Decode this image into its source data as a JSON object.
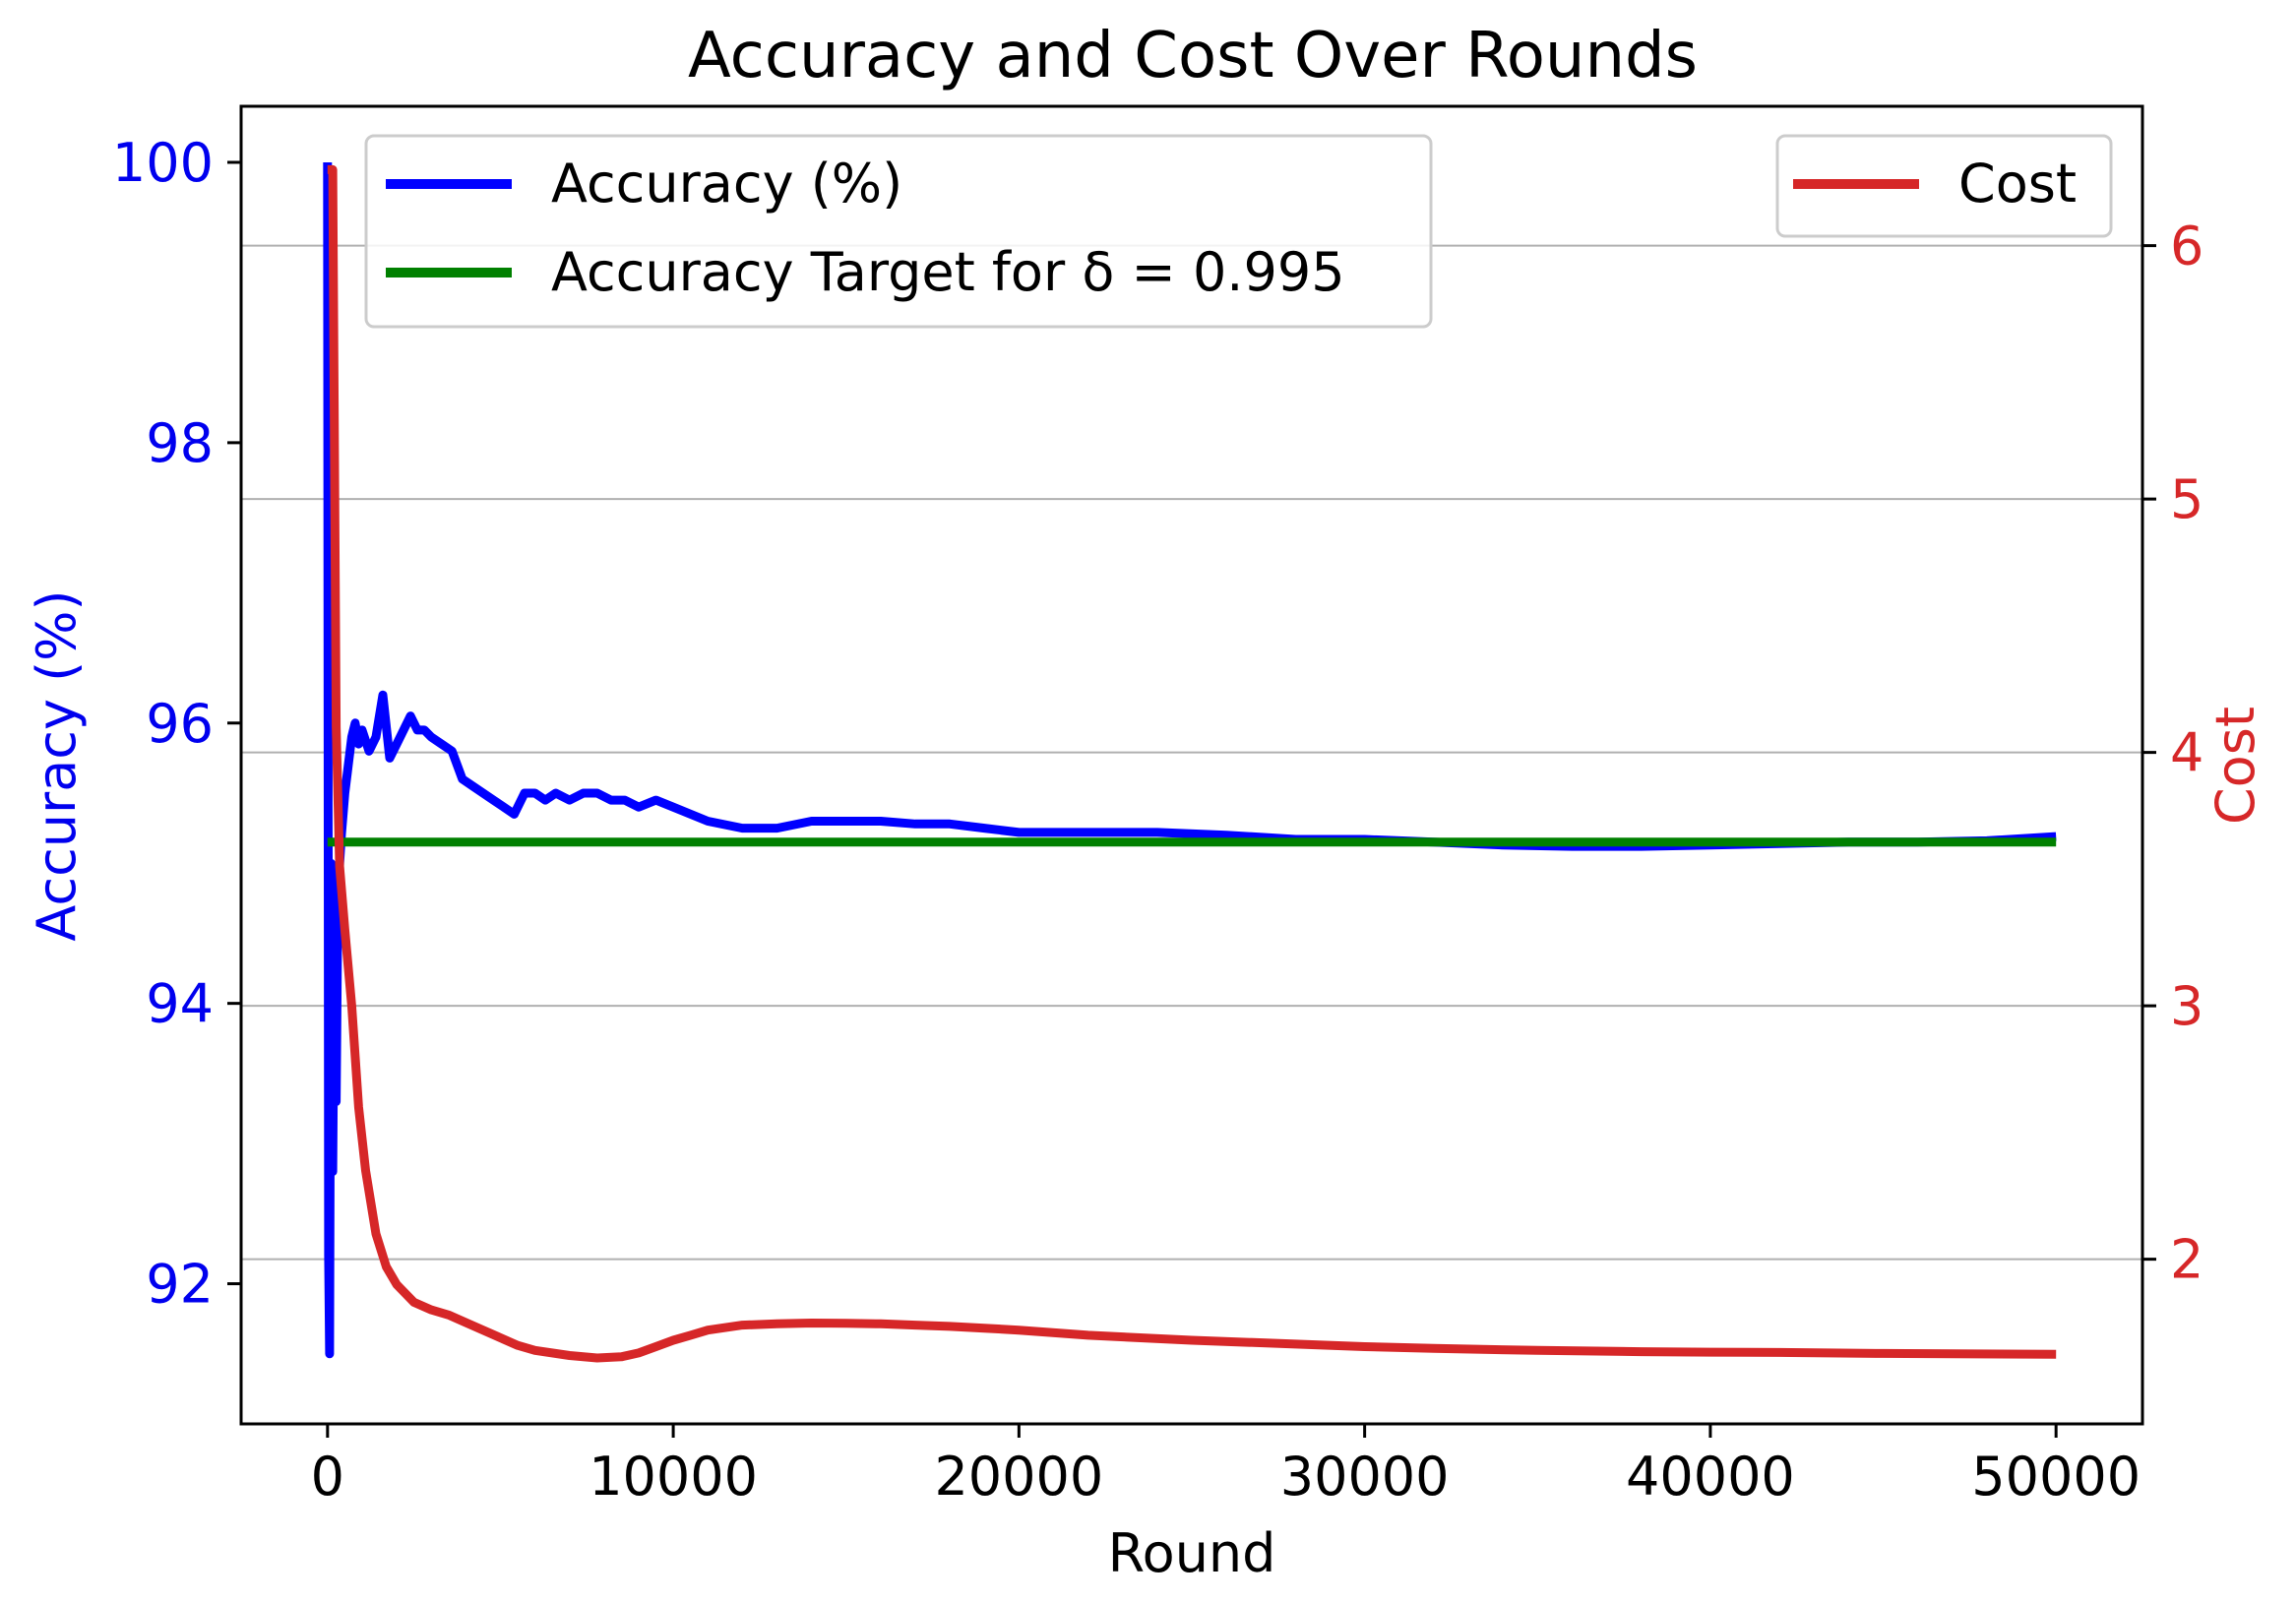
{
  "chart_data": {
    "type": "line",
    "title": "Accuracy and Cost Over Rounds",
    "xlabel": "Round",
    "xlim": [
      -2500,
      52500
    ],
    "xticks": [
      0,
      10000,
      20000,
      30000,
      40000,
      50000
    ],
    "xtick_labels": [
      "0",
      "10000",
      "20000",
      "30000",
      "40000",
      "50000"
    ],
    "left_axis": {
      "label": "Accuracy (%)",
      "color": "#0000ee",
      "lim": [
        91.0,
        100.4
      ],
      "ticks": [
        92,
        94,
        96,
        98,
        100
      ],
      "tick_labels": [
        "92",
        "94",
        "96",
        "98",
        "100"
      ]
    },
    "right_axis": {
      "label": "Cost",
      "color": "#d62728",
      "lim": [
        1.35,
        6.55
      ],
      "ticks": [
        2,
        3,
        4,
        5,
        6
      ],
      "tick_labels": [
        "2",
        "3",
        "4",
        "5",
        "6"
      ],
      "grid": true
    },
    "series": [
      {
        "name": "Accuracy (%)",
        "axis": "left",
        "color": "#0000ff",
        "x": [
          0,
          30,
          60,
          100,
          150,
          200,
          250,
          300,
          400,
          500,
          600,
          700,
          800,
          900,
          1000,
          1200,
          1400,
          1600,
          1800,
          2000,
          2200,
          2400,
          2600,
          2800,
          3000,
          3300,
          3600,
          3900,
          4200,
          4500,
          4800,
          5100,
          5400,
          5700,
          6000,
          6300,
          6600,
          7000,
          7400,
          7800,
          8200,
          8600,
          9000,
          9500,
          10000,
          11000,
          12000,
          13000,
          14000,
          15000,
          16000,
          17000,
          18000,
          19000,
          20000,
          22000,
          24000,
          26000,
          28000,
          30000,
          32000,
          34000,
          36000,
          38000,
          40000,
          42000,
          44000,
          46000,
          48000,
          50000
        ],
        "values": [
          100.0,
          92.2,
          91.5,
          95.0,
          92.8,
          94.5,
          93.3,
          94.8,
          95.2,
          95.5,
          95.7,
          95.9,
          96.0,
          95.85,
          95.95,
          95.8,
          95.9,
          96.2,
          95.75,
          95.85,
          95.95,
          96.05,
          95.95,
          95.95,
          95.9,
          95.85,
          95.8,
          95.6,
          95.55,
          95.5,
          95.45,
          95.4,
          95.35,
          95.5,
          95.5,
          95.45,
          95.5,
          95.45,
          95.5,
          95.5,
          95.45,
          95.45,
          95.4,
          95.45,
          95.4,
          95.3,
          95.25,
          95.25,
          95.3,
          95.3,
          95.3,
          95.28,
          95.28,
          95.25,
          95.22,
          95.22,
          95.22,
          95.2,
          95.17,
          95.17,
          95.15,
          95.13,
          95.12,
          95.12,
          95.13,
          95.14,
          95.15,
          95.15,
          95.16,
          95.19
        ]
      },
      {
        "name": "Accuracy Target for δ = 0.995",
        "axis": "left",
        "color": "#008000",
        "x": [
          0,
          50000
        ],
        "values": [
          95.15,
          95.15
        ]
      },
      {
        "name": "Cost",
        "axis": "right",
        "color": "#d62728",
        "x": [
          0,
          150,
          250,
          350,
          500,
          700,
          900,
          1100,
          1400,
          1700,
          2000,
          2500,
          3000,
          3500,
          4000,
          4500,
          5000,
          5500,
          6000,
          7000,
          7800,
          8500,
          9000,
          9500,
          10000,
          10500,
          11000,
          12000,
          13000,
          14000,
          15000,
          16000,
          17000,
          18000,
          19000,
          20000,
          22000,
          25000,
          28000,
          30000,
          32000,
          35000,
          38000,
          40000,
          42000,
          45000,
          50000
        ],
        "values": [
          6.3,
          6.3,
          4.1,
          3.55,
          3.3,
          3.0,
          2.6,
          2.35,
          2.1,
          1.97,
          1.9,
          1.83,
          1.8,
          1.78,
          1.75,
          1.72,
          1.69,
          1.66,
          1.64,
          1.62,
          1.61,
          1.615,
          1.63,
          1.655,
          1.68,
          1.7,
          1.72,
          1.74,
          1.745,
          1.748,
          1.747,
          1.745,
          1.74,
          1.735,
          1.728,
          1.72,
          1.7,
          1.68,
          1.665,
          1.655,
          1.648,
          1.64,
          1.635,
          1.633,
          1.632,
          1.628,
          1.625
        ]
      }
    ],
    "legends": [
      {
        "placement": "upper-left-center",
        "entries": [
          "Accuracy (%)",
          "Accuracy Target for δ = 0.995"
        ]
      },
      {
        "placement": "upper-right",
        "entries": [
          "Cost"
        ]
      }
    ]
  }
}
